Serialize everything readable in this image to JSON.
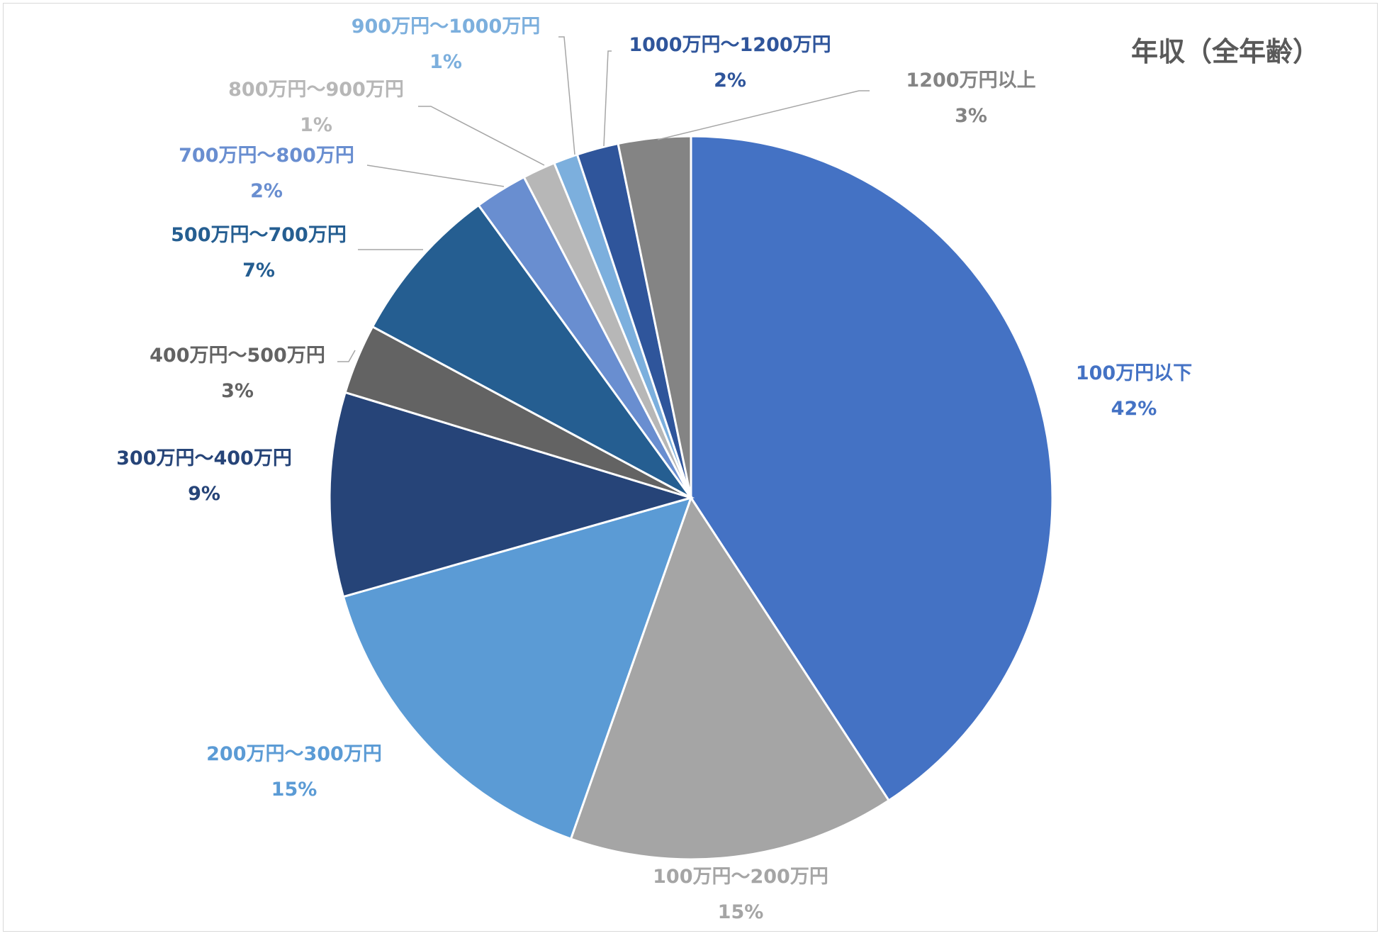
{
  "chart_data": {
    "type": "pie",
    "title": "年収（全年齢）",
    "start_angle_deg": 0,
    "direction": "clockwise",
    "slices": [
      {
        "label": "100万円以下",
        "pct_label": "42%",
        "value": 41.6,
        "color": "#4472C4",
        "label_color": "#4472C4"
      },
      {
        "label": "100万円～200万円",
        "pct_label": "15%",
        "value": 14.9,
        "color": "#A5A5A5",
        "label_color": "#A5A5A5"
      },
      {
        "label": "200万円～300万円",
        "pct_label": "15%",
        "value": 15.5,
        "color": "#5B9BD5",
        "label_color": "#5B9BD5"
      },
      {
        "label": "300万円～400万円",
        "pct_label": "9%",
        "value": 9.3,
        "color": "#264478",
        "label_color": "#264478"
      },
      {
        "label": "400万円～500万円",
        "pct_label": "3%",
        "value": 3.2,
        "color": "#636363",
        "label_color": "#636363"
      },
      {
        "label": "500万円～700万円",
        "pct_label": "7%",
        "value": 7.3,
        "color": "#255E91",
        "label_color": "#255E91"
      },
      {
        "label": "700万円～800万円",
        "pct_label": "2%",
        "value": 2.4,
        "color": "#698ED0",
        "label_color": "#698ED0"
      },
      {
        "label": "800万円～900万円",
        "pct_label": "1%",
        "value": 1.5,
        "color": "#B7B7B7",
        "label_color": "#B7B7B7"
      },
      {
        "label": "900万円～1000万円",
        "pct_label": "1%",
        "value": 1.1,
        "color": "#7CAFDD",
        "label_color": "#7CAFDD"
      },
      {
        "label": "1000万円～1200万円",
        "pct_label": "2%",
        "value": 1.9,
        "color": "#2F559B",
        "label_color": "#2F559B"
      },
      {
        "label": "1200万円以上",
        "pct_label": "3%",
        "value": 3.3,
        "color": "#848484",
        "label_color": "#848484"
      }
    ]
  }
}
